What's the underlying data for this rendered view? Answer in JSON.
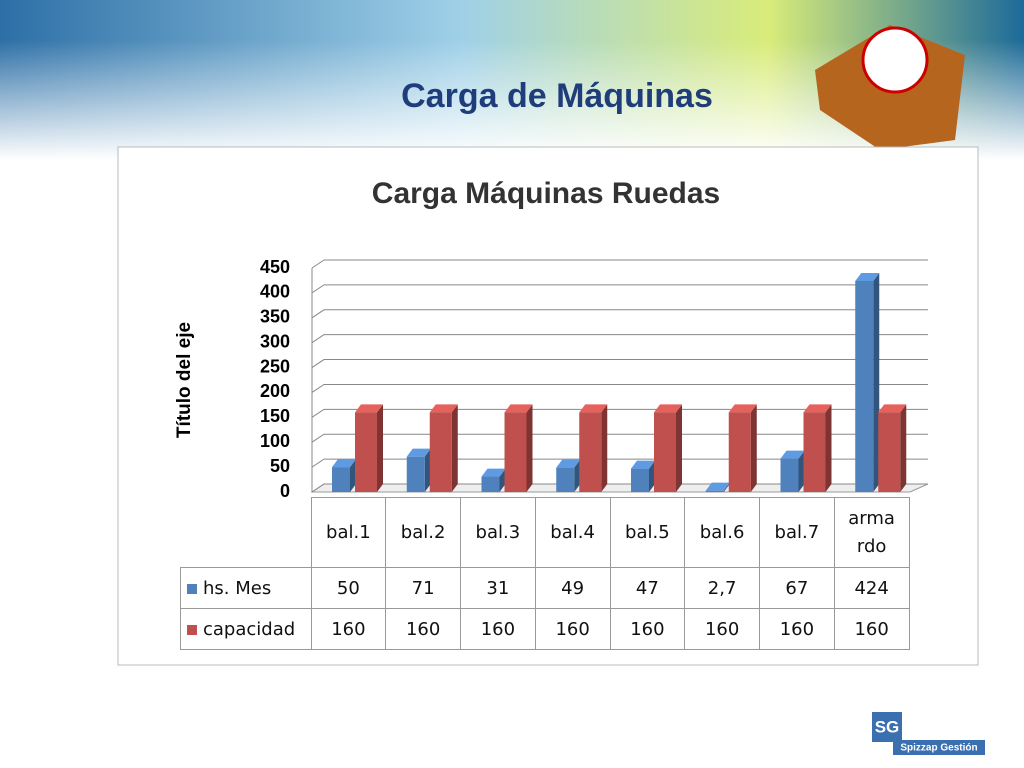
{
  "slide_title": "Carga de Máquinas",
  "chart_data": {
    "type": "bar",
    "title": "Carga Máquinas Ruedas",
    "y_label": "Título del eje",
    "categories": [
      "bal.1",
      "bal.2",
      "bal.3",
      "bal.4",
      "bal.5",
      "bal.6",
      "bal.7",
      "armardo"
    ],
    "series": [
      {
        "name": "hs. Mes",
        "color": "#4f81bd",
        "values": [
          50,
          71,
          31,
          49,
          47,
          2.7,
          67,
          424
        ],
        "value_labels": [
          "50",
          "71",
          "31",
          "49",
          "47",
          "2,7",
          "67",
          "424"
        ]
      },
      {
        "name": "capacidad",
        "color": "#c0504d",
        "values": [
          160,
          160,
          160,
          160,
          160,
          160,
          160,
          160
        ]
      }
    ],
    "ylim": [
      0,
      450
    ],
    "yticks": [
      0,
      50,
      100,
      150,
      200,
      250,
      300,
      350,
      400,
      450
    ],
    "grid": true,
    "data_table": true
  },
  "logo": {
    "initials": "SG",
    "name": "Spizzap Gestión"
  }
}
